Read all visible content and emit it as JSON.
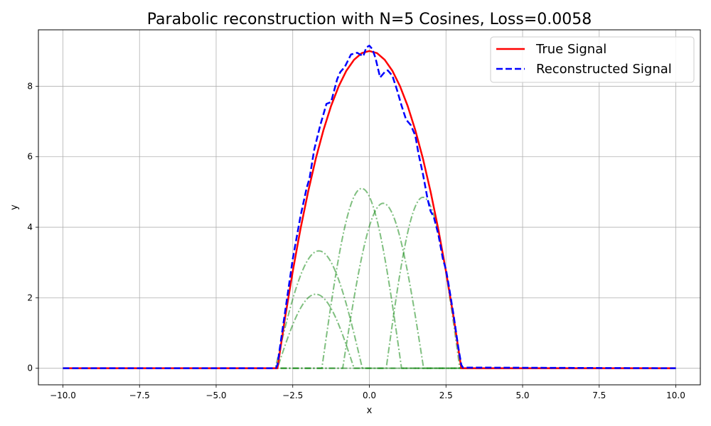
{
  "chart_data": {
    "type": "line",
    "title": "Parabolic reconstruction with N=5 Cosines, Loss=0.0058",
    "xlabel": "x",
    "ylabel": "y",
    "xlim": [
      -10.8,
      10.8
    ],
    "ylim": [
      -0.47,
      9.6
    ],
    "xticks": [
      -10.0,
      -7.5,
      -5.0,
      -2.5,
      0.0,
      2.5,
      5.0,
      7.5,
      10.0
    ],
    "xtick_labels": [
      "−10.0",
      "−7.5",
      "−5.0",
      "−2.5",
      "0.0",
      "2.5",
      "5.0",
      "7.5",
      "10.0"
    ],
    "yticks": [
      0,
      2,
      4,
      6,
      8
    ],
    "ytick_labels": [
      "0",
      "2",
      "4",
      "6",
      "8"
    ],
    "grid": true,
    "legend_position": "top-right",
    "series": [
      {
        "name": "True Signal",
        "color": "#ff0000",
        "style": "solid",
        "function": "9 - x^2 for |x| <= 3, else 0",
        "x": [
          -10,
          -3,
          -2.75,
          -2.5,
          -2.25,
          -2,
          -1.75,
          -1.5,
          -1.25,
          -1,
          -0.75,
          -0.5,
          -0.25,
          0,
          0.25,
          0.5,
          0.75,
          1,
          1.25,
          1.5,
          1.75,
          2,
          2.25,
          2.5,
          2.75,
          3,
          10
        ],
        "y": [
          0,
          0,
          1.44,
          2.75,
          3.94,
          5.0,
          5.94,
          6.75,
          7.44,
          8.0,
          8.44,
          8.75,
          8.94,
          9.0,
          8.94,
          8.75,
          8.44,
          8.0,
          7.44,
          6.75,
          5.94,
          5.0,
          3.94,
          2.75,
          1.44,
          0,
          0
        ]
      },
      {
        "name": "Reconstructed Signal",
        "color": "#0000ff",
        "style": "dashed",
        "x": [
          -10,
          -3.05,
          -3.0,
          -2.9,
          -2.75,
          -2.5,
          -2.25,
          -2.05,
          -1.95,
          -1.8,
          -1.6,
          -1.4,
          -1.25,
          -1.05,
          -0.95,
          -0.8,
          -0.6,
          -0.4,
          -0.2,
          -0.1,
          0.0,
          0.1,
          0.2,
          0.35,
          0.5,
          0.6,
          0.75,
          0.9,
          1.05,
          1.2,
          1.35,
          1.5,
          1.6,
          1.75,
          1.9,
          2.0,
          2.1,
          2.25,
          2.4,
          2.5,
          2.6,
          2.75,
          2.9,
          3.0,
          3.05,
          10
        ],
        "y": [
          0,
          0,
          0.1,
          0.7,
          1.6,
          3.1,
          4.3,
          5.1,
          5.4,
          6.2,
          6.9,
          7.5,
          7.55,
          8.2,
          8.4,
          8.55,
          8.9,
          8.95,
          8.85,
          9.1,
          9.15,
          9.05,
          8.8,
          8.25,
          8.4,
          8.45,
          8.3,
          7.9,
          7.45,
          7.05,
          6.9,
          6.6,
          6.1,
          5.5,
          4.8,
          4.45,
          4.3,
          3.8,
          3.1,
          2.8,
          2.3,
          1.5,
          0.6,
          0.1,
          0.02,
          0
        ]
      }
    ],
    "components": [
      {
        "name": "",
        "color": "#008000",
        "style": "dash-dot",
        "center": -1.75,
        "amplitude": 2.1,
        "half_width": 1.25
      },
      {
        "name": "",
        "color": "#008000",
        "style": "dash-dot",
        "center": -1.65,
        "amplitude": 3.33,
        "half_width": 1.42
      },
      {
        "name": "",
        "color": "#008000",
        "style": "dash-dot",
        "center": -0.25,
        "amplitude": 5.1,
        "half_width": 1.3
      },
      {
        "name": "",
        "color": "#008000",
        "style": "dash-dot",
        "center": 0.45,
        "amplitude": 4.68,
        "half_width": 1.32
      },
      {
        "name": "",
        "color": "#008000",
        "style": "dash-dot",
        "center": 1.75,
        "amplitude": 4.85,
        "half_width": 1.2
      }
    ]
  }
}
